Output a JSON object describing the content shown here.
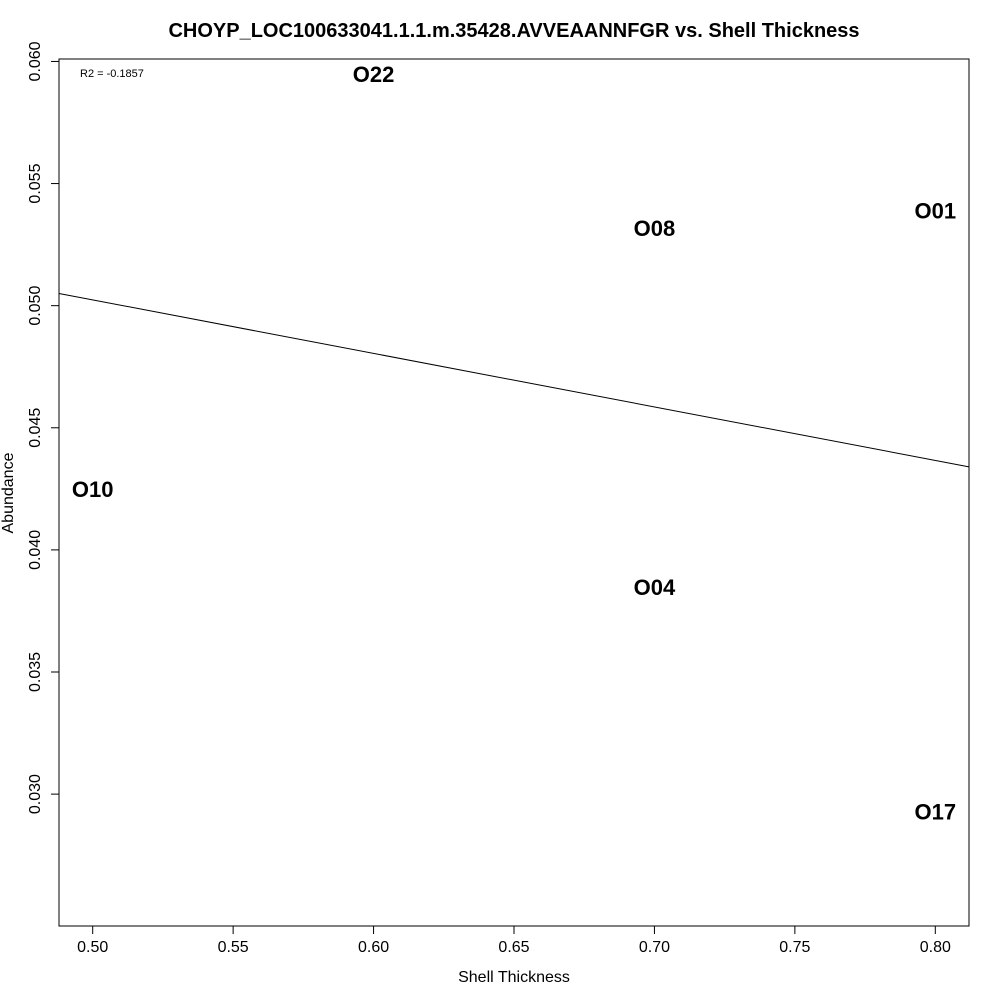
{
  "chart_data": {
    "type": "scatter",
    "title": "CHOYP_LOC100633041.1.1.m.35428.AVVEAANNFGR vs. Shell Thickness",
    "xlabel": "Shell Thickness",
    "ylabel": "Abundance",
    "xlim": [
      0.488,
      0.812
    ],
    "ylim": [
      0.0246,
      0.0601
    ],
    "xticks": [
      "0.50",
      "0.55",
      "0.60",
      "0.65",
      "0.70",
      "0.75",
      "0.80"
    ],
    "yticks": [
      "0.030",
      "0.035",
      "0.040",
      "0.045",
      "0.050",
      "0.055",
      "0.060"
    ],
    "points": [
      {
        "label": "O22",
        "x": 0.6,
        "y": 0.0594
      },
      {
        "label": "O08",
        "x": 0.7,
        "y": 0.0531
      },
      {
        "label": "O01",
        "x": 0.8,
        "y": 0.0538
      },
      {
        "label": "O10",
        "x": 0.5,
        "y": 0.0424
      },
      {
        "label": "O04",
        "x": 0.7,
        "y": 0.0384
      },
      {
        "label": "O17",
        "x": 0.8,
        "y": 0.0292
      }
    ],
    "fit_line": {
      "x": [
        0.488,
        0.812
      ],
      "y": [
        0.0505,
        0.0434
      ]
    },
    "annotation": "R2 = -0.1857",
    "grid": false,
    "legend": "none"
  }
}
